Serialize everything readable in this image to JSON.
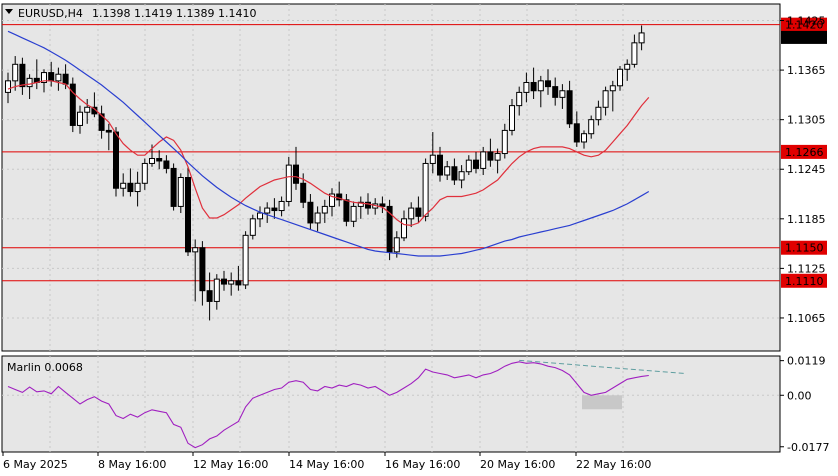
{
  "header": {
    "symbol": "EURUSD,H4",
    "ohlc": "1.1398 1.1419 1.1389 1.1410"
  },
  "colors": {
    "background": "#e6e6e6",
    "grid": "#c8c8c8",
    "ma_fast": "#e0303c",
    "ma_slow": "#2a3fd0",
    "level_line": "#e00000",
    "level_label_bg": "#e00000",
    "oscillator": "#a020c0",
    "trendline": "#5f9ea0",
    "divergence_box": "#c8c8c8"
  },
  "chart_data": [
    {
      "type": "candlestick",
      "title": "EURUSD,H4",
      "ylim": [
        1.1025,
        1.1445
      ],
      "y_ticks": [
        "1.1425",
        "1.1365",
        "1.1305",
        "1.1245",
        "1.1185",
        "1.1125",
        "1.1065"
      ],
      "x_ticks": [
        "6 May 2025",
        "8 May 16:00",
        "12 May 16:00",
        "14 May 16:00",
        "16 May 16:00",
        "20 May 16:00",
        "22 May 16:00"
      ],
      "current_price": "1.1410",
      "levels": [
        {
          "label": "1.1420",
          "value": 1.142
        },
        {
          "label": "1.1266",
          "value": 1.1266
        },
        {
          "label": "1.1150",
          "value": 1.115
        },
        {
          "label": "1.1110",
          "value": 1.111
        }
      ],
      "candles": [
        [
          1.1338,
          1.1362,
          1.1325,
          1.1352
        ],
        [
          1.1352,
          1.1382,
          1.134,
          1.1372
        ],
        [
          1.1372,
          1.138,
          1.1335,
          1.1345
        ],
        [
          1.1345,
          1.136,
          1.133,
          1.1355
        ],
        [
          1.1355,
          1.1378,
          1.1342,
          1.135
        ],
        [
          1.135,
          1.1366,
          1.1338,
          1.1362
        ],
        [
          1.1362,
          1.1375,
          1.1345,
          1.1352
        ],
        [
          1.1352,
          1.1368,
          1.134,
          1.136
        ],
        [
          1.136,
          1.1372,
          1.1342,
          1.1348
        ],
        [
          1.1348,
          1.1356,
          1.129,
          1.1298
        ],
        [
          1.1298,
          1.1322,
          1.1288,
          1.1314
        ],
        [
          1.1314,
          1.133,
          1.13,
          1.132
        ],
        [
          1.132,
          1.1338,
          1.1308,
          1.1312
        ],
        [
          1.1312,
          1.1322,
          1.1282,
          1.1292
        ],
        [
          1.1292,
          1.13,
          1.1268,
          1.129
        ],
        [
          1.129,
          1.1296,
          1.1212,
          1.1222
        ],
        [
          1.1222,
          1.124,
          1.1212,
          1.1228
        ],
        [
          1.1228,
          1.1246,
          1.1212,
          1.1218
        ],
        [
          1.1218,
          1.1242,
          1.12,
          1.1228
        ],
        [
          1.1228,
          1.1258,
          1.122,
          1.1252
        ],
        [
          1.1252,
          1.1275,
          1.1248,
          1.1258
        ],
        [
          1.1258,
          1.1268,
          1.1245,
          1.1255
        ],
        [
          1.1255,
          1.1262,
          1.124,
          1.1246
        ],
        [
          1.1246,
          1.1252,
          1.1195,
          1.12
        ],
        [
          1.12,
          1.124,
          1.1192,
          1.1235
        ],
        [
          1.1235,
          1.1248,
          1.114,
          1.1145
        ],
        [
          1.1145,
          1.116,
          1.1085,
          1.115
        ],
        [
          1.115,
          1.1158,
          1.108,
          1.1098
        ],
        [
          1.1098,
          1.112,
          1.1062,
          1.1085
        ],
        [
          1.1085,
          1.1118,
          1.1075,
          1.1112
        ],
        [
          1.1112,
          1.1122,
          1.1098,
          1.1106
        ],
        [
          1.1106,
          1.112,
          1.1092,
          1.111
        ],
        [
          1.111,
          1.1128,
          1.1098,
          1.1105
        ],
        [
          1.1105,
          1.117,
          1.11,
          1.1165
        ],
        [
          1.1165,
          1.119,
          1.116,
          1.1185
        ],
        [
          1.1185,
          1.12,
          1.1175,
          1.1192
        ],
        [
          1.1192,
          1.1205,
          1.118,
          1.1198
        ],
        [
          1.1198,
          1.121,
          1.1185,
          1.1195
        ],
        [
          1.1195,
          1.1212,
          1.1188,
          1.1206
        ],
        [
          1.1206,
          1.126,
          1.12,
          1.125
        ],
        [
          1.125,
          1.1272,
          1.122,
          1.1228
        ],
        [
          1.1228,
          1.124,
          1.1198,
          1.1205
        ],
        [
          1.1205,
          1.1215,
          1.1172,
          1.118
        ],
        [
          1.118,
          1.12,
          1.117,
          1.1192
        ],
        [
          1.1192,
          1.1208,
          1.118,
          1.12
        ],
        [
          1.12,
          1.1222,
          1.1188,
          1.1215
        ],
        [
          1.1215,
          1.123,
          1.12,
          1.1208
        ],
        [
          1.1208,
          1.1215,
          1.1176,
          1.1182
        ],
        [
          1.1182,
          1.1206,
          1.1175,
          1.12
        ],
        [
          1.12,
          1.1212,
          1.1185,
          1.1205
        ],
        [
          1.1205,
          1.1216,
          1.119,
          1.1198
        ],
        [
          1.1198,
          1.121,
          1.119,
          1.1203
        ],
        [
          1.1203,
          1.1212,
          1.1192,
          1.12
        ],
        [
          1.12,
          1.1208,
          1.1135,
          1.1145
        ],
        [
          1.1145,
          1.117,
          1.1138,
          1.1162
        ],
        [
          1.1162,
          1.1195,
          1.1158,
          1.1185
        ],
        [
          1.1185,
          1.1205,
          1.1175,
          1.1198
        ],
        [
          1.1198,
          1.1212,
          1.118,
          1.1188
        ],
        [
          1.1188,
          1.1258,
          1.1182,
          1.1252
        ],
        [
          1.1252,
          1.129,
          1.124,
          1.1262
        ],
        [
          1.1262,
          1.1272,
          1.123,
          1.1238
        ],
        [
          1.1238,
          1.1255,
          1.1232,
          1.1248
        ],
        [
          1.1248,
          1.1258,
          1.1226,
          1.1232
        ],
        [
          1.1232,
          1.125,
          1.1222,
          1.1242
        ],
        [
          1.1242,
          1.1262,
          1.1238,
          1.1256
        ],
        [
          1.1256,
          1.1266,
          1.124,
          1.1246
        ],
        [
          1.1246,
          1.1272,
          1.1238,
          1.1266
        ],
        [
          1.1266,
          1.1282,
          1.1248,
          1.1256
        ],
        [
          1.1256,
          1.127,
          1.124,
          1.1264
        ],
        [
          1.1264,
          1.13,
          1.1258,
          1.1292
        ],
        [
          1.1292,
          1.133,
          1.1286,
          1.1322
        ],
        [
          1.1322,
          1.1345,
          1.131,
          1.1338
        ],
        [
          1.1338,
          1.1362,
          1.1326,
          1.135
        ],
        [
          1.135,
          1.1368,
          1.133,
          1.134
        ],
        [
          1.134,
          1.1358,
          1.132,
          1.1352
        ],
        [
          1.1352,
          1.1366,
          1.1335,
          1.1345
        ],
        [
          1.1345,
          1.1356,
          1.1322,
          1.1332
        ],
        [
          1.1332,
          1.1348,
          1.1318,
          1.134
        ],
        [
          1.134,
          1.1352,
          1.1295,
          1.13
        ],
        [
          1.13,
          1.1315,
          1.1272,
          1.1278
        ],
        [
          1.1278,
          1.1292,
          1.127,
          1.1288
        ],
        [
          1.1288,
          1.131,
          1.1282,
          1.1305
        ],
        [
          1.1305,
          1.1328,
          1.1298,
          1.132
        ],
        [
          1.132,
          1.1345,
          1.131,
          1.134
        ],
        [
          1.134,
          1.1352,
          1.1315,
          1.1346
        ],
        [
          1.1346,
          1.137,
          1.134,
          1.1366
        ],
        [
          1.1366,
          1.1378,
          1.1352,
          1.1372
        ],
        [
          1.1372,
          1.1408,
          1.1368,
          1.1398
        ],
        [
          1.1398,
          1.1419,
          1.1389,
          1.141
        ]
      ],
      "series": [
        {
          "color": "#e0303c",
          "values": [
            1.1342,
            1.1345,
            1.1347,
            1.1348,
            1.135,
            1.1352,
            1.1352,
            1.135,
            1.1348,
            1.1338,
            1.133,
            1.1323,
            1.1318,
            1.131,
            1.1302,
            1.1288,
            1.1276,
            1.1268,
            1.1262,
            1.1262,
            1.127,
            1.1278,
            1.1284,
            1.128,
            1.1268,
            1.1248,
            1.1222,
            1.1198,
            1.1186,
            1.1186,
            1.119,
            1.1196,
            1.1202,
            1.121,
            1.1217,
            1.1224,
            1.1228,
            1.1232,
            1.1234,
            1.1236,
            1.1236,
            1.1233,
            1.1228,
            1.1222,
            1.1216,
            1.1212,
            1.121,
            1.1207,
            1.1205,
            1.1204,
            1.1203,
            1.1201,
            1.1199,
            1.1192,
            1.1184,
            1.1178,
            1.1177,
            1.118,
            1.119,
            1.1198,
            1.1208,
            1.1212,
            1.1212,
            1.1212,
            1.1214,
            1.1216,
            1.122,
            1.1226,
            1.1232,
            1.1242,
            1.1252,
            1.126,
            1.1266,
            1.127,
            1.1272,
            1.1272,
            1.1272,
            1.1272,
            1.127,
            1.1266,
            1.1262,
            1.126,
            1.1262,
            1.1268,
            1.1278,
            1.1288,
            1.1298,
            1.131,
            1.1322,
            1.1332
          ]
        },
        {
          "color": "#2a3fd0",
          "values": [
            1.1412,
            1.1408,
            1.1404,
            1.14,
            1.1396,
            1.1392,
            1.1387,
            1.1382,
            1.1377,
            1.1371,
            1.1365,
            1.1359,
            1.1353,
            1.1347,
            1.134,
            1.1333,
            1.1326,
            1.1318,
            1.131,
            1.1302,
            1.1294,
            1.1286,
            1.1278,
            1.127,
            1.1262,
            1.1253,
            1.1245,
            1.1237,
            1.123,
            1.1223,
            1.1217,
            1.1211,
            1.1206,
            1.1201,
            1.1197,
            1.1193,
            1.119,
            1.1187,
            1.1184,
            1.1181,
            1.1178,
            1.1175,
            1.1172,
            1.1169,
            1.1166,
            1.1163,
            1.116,
            1.1157,
            1.1154,
            1.1151,
            1.1148,
            1.1146,
            1.1145,
            1.1144,
            1.1143,
            1.1142,
            1.1141,
            1.114,
            1.114,
            1.114,
            1.114,
            1.1141,
            1.1142,
            1.1143,
            1.1145,
            1.1147,
            1.1149,
            1.1152,
            1.1155,
            1.1158,
            1.116,
            1.1163,
            1.1165,
            1.1167,
            1.1169,
            1.1171,
            1.1173,
            1.1175,
            1.1177,
            1.118,
            1.1183,
            1.1186,
            1.1189,
            1.1192,
            1.1195,
            1.1199,
            1.1203,
            1.1208,
            1.1213,
            1.1218
          ]
        }
      ]
    },
    {
      "type": "line",
      "title": "Marlin 0.0068",
      "ylim": [
        -0.0195,
        0.0135
      ],
      "y_ticks": [
        "0.0119",
        "0.00",
        "-0.0177"
      ],
      "series": [
        {
          "color": "#a020c0",
          "values": [
            0.003,
            0.002,
            0.001,
            0.0028,
            0.0012,
            0.0015,
            0.0005,
            0.003,
            0.001,
            -0.001,
            -0.003,
            -0.0015,
            -0.0005,
            -0.002,
            -0.003,
            -0.007,
            -0.008,
            -0.0065,
            -0.0075,
            -0.006,
            -0.005,
            -0.0055,
            -0.006,
            -0.01,
            -0.011,
            -0.0165,
            -0.018,
            -0.017,
            -0.015,
            -0.014,
            -0.012,
            -0.0105,
            -0.009,
            -0.004,
            -0.001,
            0.0,
            0.001,
            0.002,
            0.0025,
            0.0045,
            0.005,
            0.0045,
            0.002,
            0.0015,
            0.003,
            0.0025,
            0.0035,
            0.003,
            0.004,
            0.0035,
            0.0025,
            0.003,
            0.0015,
            0.0,
            0.001,
            0.0025,
            0.004,
            0.006,
            0.009,
            0.008,
            0.0075,
            0.007,
            0.006,
            0.0065,
            0.007,
            0.006,
            0.007,
            0.0075,
            0.0085,
            0.01,
            0.011,
            0.0115,
            0.011,
            0.0112,
            0.0108,
            0.01,
            0.0095,
            0.0085,
            0.007,
            0.004,
            0.001,
            0.0,
            0.0005,
            0.001,
            0.0025,
            0.004,
            0.0055,
            0.006,
            0.0065,
            0.0068
          ]
        }
      ]
    }
  ]
}
